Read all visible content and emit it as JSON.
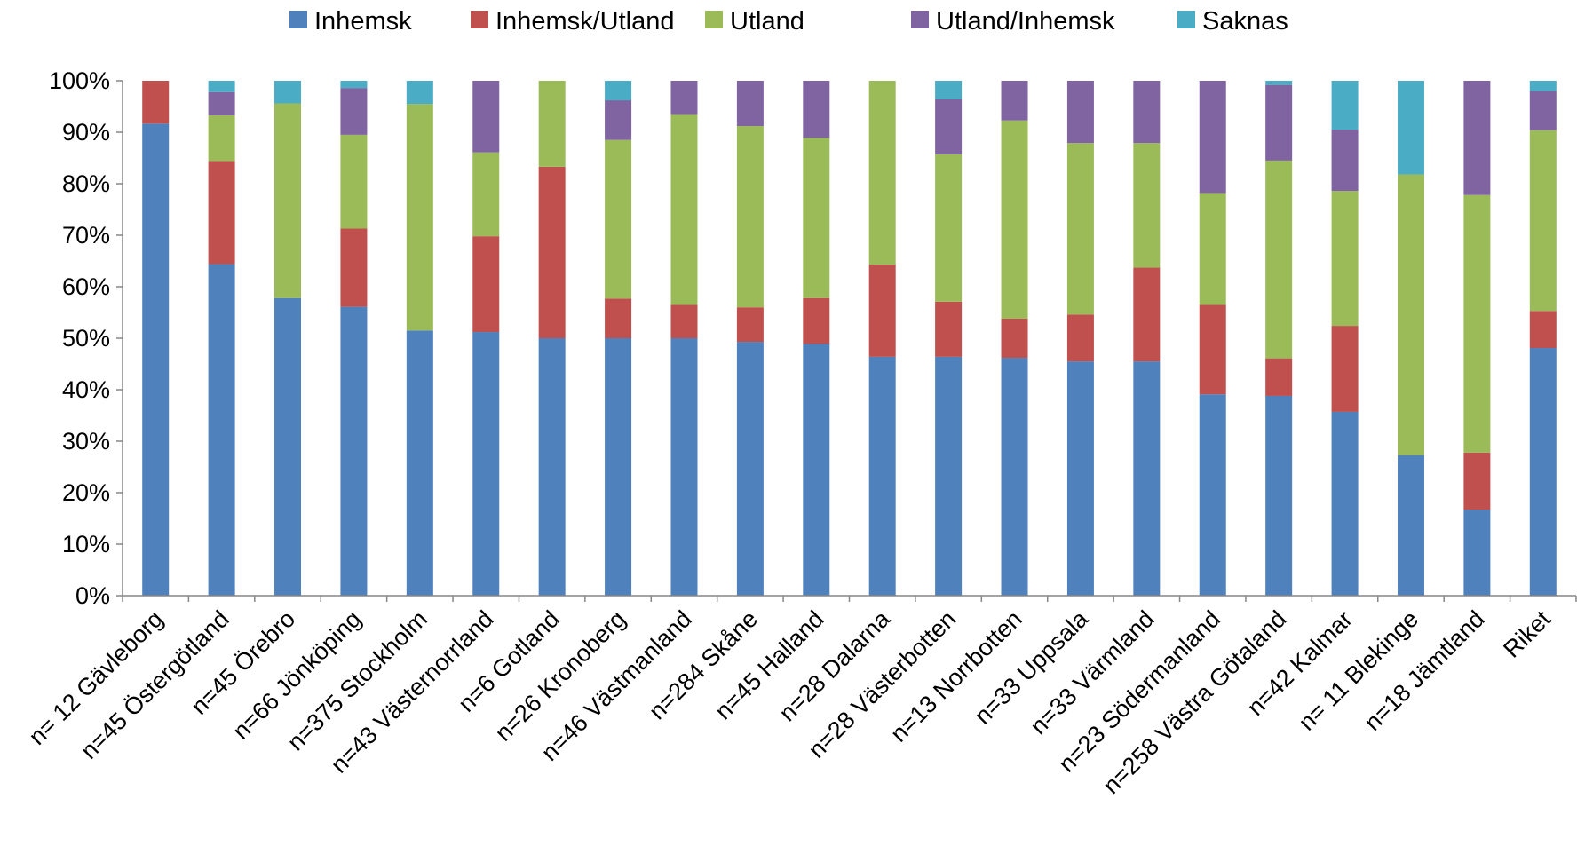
{
  "chart_data": {
    "type": "bar",
    "stacked": true,
    "percent": true,
    "ylim": [
      0,
      100
    ],
    "yticks": [
      "0%",
      "10%",
      "20%",
      "30%",
      "40%",
      "50%",
      "60%",
      "70%",
      "80%",
      "90%",
      "100%"
    ],
    "legend_position": "top",
    "grid": false,
    "categories": [
      "n= 12 Gävleborg",
      "n=45 Östergötland",
      "n=45 Örebro",
      "n=66 Jönköping",
      "n=375 Stockholm",
      "n=43 Västernorrland",
      "n=6 Gotland",
      "n=26 Kronoberg",
      "n=46 Västmanland",
      "n=284 Skåne",
      "n=45 Halland",
      "n=28 Dalarna",
      "n=28 Västerbotten",
      "n=13 Norrbotten",
      "n=33 Uppsala",
      "n=33 Värmland",
      "n=23 Södermanland",
      "n=258 Västra Götaland",
      "n=42 Kalmar",
      "n= 11 Blekinge",
      "n=18 Jämtland",
      "Riket"
    ],
    "series": [
      {
        "name": "Inhemsk",
        "color": "#4F81BD",
        "values": [
          91.7,
          64.4,
          57.8,
          56.1,
          51.5,
          51.2,
          50.0,
          50.0,
          50.0,
          49.3,
          48.9,
          46.4,
          46.4,
          46.2,
          45.5,
          45.5,
          39.1,
          38.8,
          35.7,
          27.3,
          16.7,
          48.1
        ]
      },
      {
        "name": "Inhemsk/Utland",
        "color": "#C0504D",
        "values": [
          8.3,
          20.0,
          0,
          15.2,
          0,
          18.6,
          33.3,
          7.7,
          6.5,
          6.7,
          8.9,
          17.9,
          10.7,
          7.6,
          9.1,
          18.2,
          17.4,
          7.3,
          16.7,
          0,
          11.1,
          7.2
        ]
      },
      {
        "name": "Utland",
        "color": "#9BBB59",
        "values": [
          0,
          8.9,
          37.8,
          18.2,
          44.0,
          16.3,
          16.7,
          30.8,
          37.0,
          35.2,
          31.1,
          35.7,
          28.6,
          38.5,
          33.3,
          24.2,
          21.7,
          38.4,
          26.2,
          54.5,
          50.0,
          35.1
        ]
      },
      {
        "name": "Utland/Inhemsk",
        "color": "#8064A2",
        "values": [
          0,
          4.5,
          0,
          9.1,
          0,
          13.9,
          0,
          7.7,
          6.5,
          8.8,
          11.1,
          0,
          10.7,
          7.7,
          12.1,
          12.1,
          21.8,
          14.7,
          11.9,
          0,
          22.2,
          7.6
        ]
      },
      {
        "name": "Saknas",
        "color": "#4BACC6",
        "values": [
          0,
          2.2,
          4.4,
          1.4,
          4.5,
          0,
          0,
          3.8,
          0,
          0,
          0,
          0,
          3.6,
          0,
          0,
          0,
          0,
          0.8,
          9.5,
          18.2,
          0,
          2.0
        ]
      }
    ]
  }
}
